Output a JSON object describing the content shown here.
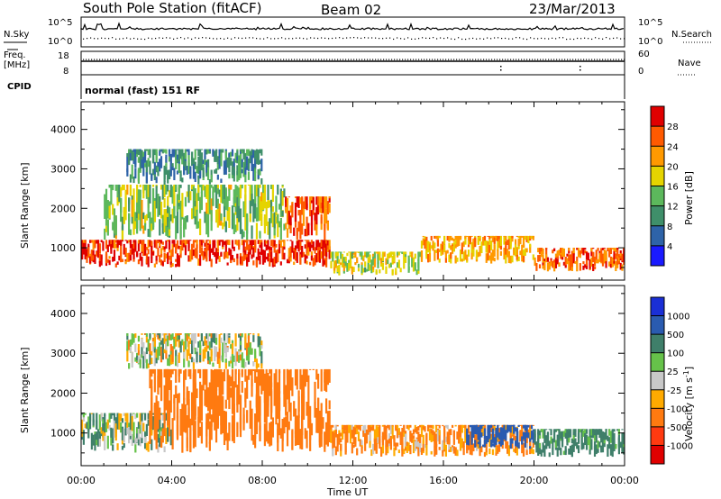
{
  "header": {
    "title": "South Pole Station (fitACF)",
    "beam": "Beam 02",
    "date": "23/Mar/2013"
  },
  "top_panels": {
    "nsky_label": "N.Sky",
    "nsky_ticks": [
      "10^5",
      "10^0"
    ],
    "nsearch_label": "N.Search",
    "nsearch_ticks": [
      "10^5",
      "10^0"
    ],
    "freq_label": "Freq.",
    "freq_unit": "[MHz]",
    "freq_ticks": [
      "18",
      "8"
    ],
    "nave_label": "Nave",
    "nave_ticks": [
      "60",
      "0"
    ],
    "cpid_label": "CPID",
    "cpid_text": "normal (fast) 151 RF"
  },
  "power_cbar": {
    "label": "Power [dB]",
    "ticks": [
      "28",
      "24",
      "20",
      "16",
      "12",
      "8",
      "4"
    ],
    "colors": [
      "#1a1aff",
      "#2e63a8",
      "#3f8f6a",
      "#5cb85c",
      "#e5d400",
      "#ff9900",
      "#ff5a00",
      "#e00000"
    ]
  },
  "velocity_cbar": {
    "label": "Velocity [m s",
    "label_sup": "-1",
    "label_close": "]",
    "ticks": [
      "1000",
      "500",
      "100",
      "25",
      "-25",
      "-100",
      "-500",
      "-1000"
    ],
    "colors": [
      "#1a2fd6",
      "#2a5bb0",
      "#3f7f6a",
      "#66c24a",
      "#c8c8c8",
      "#ffaa00",
      "#ff7a10",
      "#ff3a10",
      "#e00000"
    ]
  },
  "chart_data": [
    {
      "type": "heatmap",
      "name": "power",
      "ylabel": "Slant Range [km]",
      "yticks": [
        1000,
        2000,
        3000,
        4000
      ],
      "ylim": [
        180,
        4700
      ],
      "xlim": [
        0,
        24
      ],
      "xticks": [
        "00:00",
        "04:00",
        "08:00",
        "12:00",
        "16:00",
        "20:00",
        "00:00"
      ],
      "value_label": "Power [dB]",
      "value_range": [
        0,
        30
      ],
      "approx_cells": [
        {
          "t0": 0,
          "t1": 11,
          "r0": 500,
          "r1": 1200,
          "v": 26
        },
        {
          "t0": 1,
          "t1": 9,
          "r0": 1200,
          "r1": 2600,
          "v": 14
        },
        {
          "t0": 2,
          "t1": 8,
          "r0": 2600,
          "r1": 3500,
          "v": 9
        },
        {
          "t0": 9,
          "t1": 11,
          "r0": 1200,
          "r1": 2300,
          "v": 24
        },
        {
          "t0": 11,
          "t1": 15,
          "r0": 300,
          "r1": 900,
          "v": 16
        },
        {
          "t0": 15,
          "t1": 20,
          "r0": 600,
          "r1": 1300,
          "v": 20
        },
        {
          "t0": 20,
          "t1": 24,
          "r0": 400,
          "r1": 1000,
          "v": 24
        }
      ]
    },
    {
      "type": "heatmap",
      "name": "velocity",
      "ylabel": "Slant Range [km]",
      "yticks": [
        1000,
        2000,
        3000,
        4000
      ],
      "ylim": [
        180,
        4700
      ],
      "xlim": [
        0,
        24
      ],
      "xticks": [
        "00:00",
        "04:00",
        "08:00",
        "12:00",
        "16:00",
        "20:00",
        "00:00"
      ],
      "xlabel": "Time UT",
      "value_label": "Velocity [m s-1]",
      "value_range": [
        -1000,
        1000
      ],
      "approx_cells": [
        {
          "t0": 0,
          "t1": 4,
          "r0": 500,
          "r1": 1500,
          "v": 80
        },
        {
          "t0": 3,
          "t1": 11,
          "r0": 500,
          "r1": 2600,
          "v": -300
        },
        {
          "t0": 2,
          "t1": 8,
          "r0": 2600,
          "r1": 3500,
          "v": 0
        },
        {
          "t0": 11,
          "t1": 20,
          "r0": 400,
          "r1": 1200,
          "v": -150
        },
        {
          "t0": 17,
          "t1": 20,
          "r0": 600,
          "r1": 1200,
          "v": 800
        },
        {
          "t0": 20,
          "t1": 24,
          "r0": 400,
          "r1": 1100,
          "v": 200
        }
      ]
    }
  ]
}
